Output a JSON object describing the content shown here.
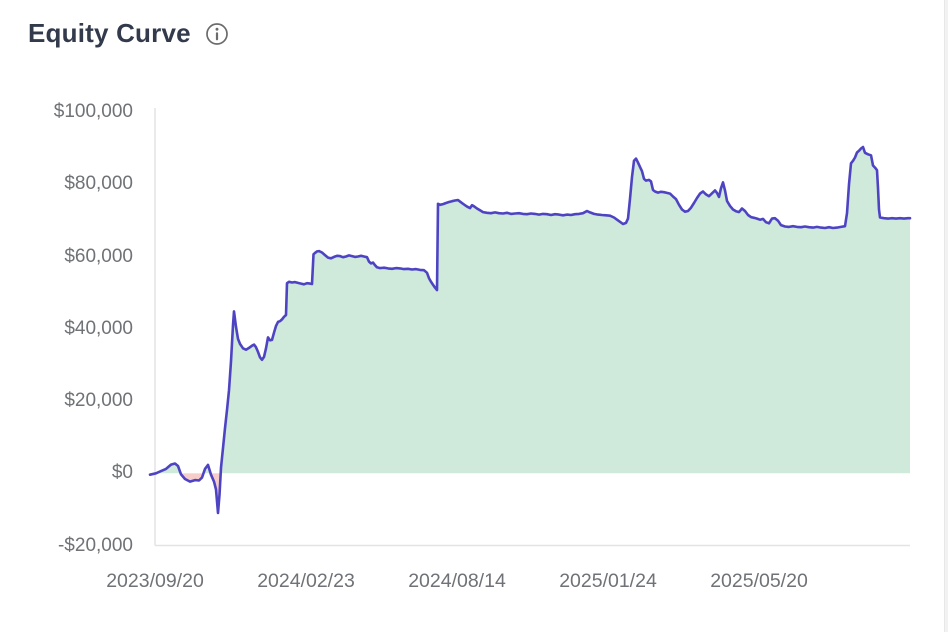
{
  "header": {
    "title": "Equity Curve"
  },
  "chart_data": {
    "type": "area",
    "title": "Equity Curve",
    "xlabel": "",
    "ylabel": "",
    "ylim": [
      -20000,
      100000
    ],
    "grid": false,
    "legend": false,
    "line_color": "#4e44c3",
    "fill_positive": "#cfe9db",
    "fill_negative": "#f7cdc9",
    "axis_color": "#e3e3e6",
    "y_ticks": [
      {
        "label": "$100,000",
        "value": 100000
      },
      {
        "label": "$80,000",
        "value": 80000
      },
      {
        "label": "$60,000",
        "value": 60000
      },
      {
        "label": "$40,000",
        "value": 40000
      },
      {
        "label": "$20,000",
        "value": 20000
      },
      {
        "label": "$0",
        "value": 0
      },
      {
        "label": "-$20,000",
        "value": -20000
      }
    ],
    "x_ticks": [
      {
        "label": "2023/09/20",
        "f": 0.0
      },
      {
        "label": "2024/02/23",
        "f": 0.2
      },
      {
        "label": "2024/08/14",
        "f": 0.4
      },
      {
        "label": "2025/01/24",
        "f": 0.6
      },
      {
        "label": "2025/05/20",
        "f": 0.8
      }
    ],
    "series": [
      {
        "name": "equity",
        "unit": "USD",
        "points": [
          [
            -0.0066,
            -400
          ],
          [
            0.0013,
            0
          ],
          [
            0.0079,
            600
          ],
          [
            0.0146,
            1200
          ],
          [
            0.0212,
            2400
          ],
          [
            0.0265,
            2700
          ],
          [
            0.0305,
            2000
          ],
          [
            0.0344,
            -300
          ],
          [
            0.0397,
            -1600
          ],
          [
            0.0464,
            -2300
          ],
          [
            0.053,
            -1900
          ],
          [
            0.0583,
            -2000
          ],
          [
            0.0623,
            -1200
          ],
          [
            0.0662,
            1200
          ],
          [
            0.0702,
            2300
          ],
          [
            0.0742,
            -400
          ],
          [
            0.0781,
            -2300
          ],
          [
            0.0808,
            -4500
          ],
          [
            0.0834,
            -11000
          ],
          [
            0.0854,
            -6000
          ],
          [
            0.0874,
            1500
          ],
          [
            0.0901,
            7000
          ],
          [
            0.0927,
            12500
          ],
          [
            0.0954,
            17500
          ],
          [
            0.098,
            23000
          ],
          [
            0.1007,
            31000
          ],
          [
            0.1033,
            41000
          ],
          [
            0.1046,
            44800
          ],
          [
            0.1073,
            40500
          ],
          [
            0.1099,
            37200
          ],
          [
            0.1126,
            35800
          ],
          [
            0.1166,
            34600
          ],
          [
            0.1205,
            34200
          ],
          [
            0.1245,
            34700
          ],
          [
            0.1285,
            35300
          ],
          [
            0.1311,
            35600
          ],
          [
            0.1338,
            34900
          ],
          [
            0.1364,
            33600
          ],
          [
            0.1391,
            32100
          ],
          [
            0.1417,
            31400
          ],
          [
            0.1444,
            32200
          ],
          [
            0.147,
            34600
          ],
          [
            0.1497,
            37600
          ],
          [
            0.1523,
            36800
          ],
          [
            0.155,
            36900
          ],
          [
            0.1576,
            38900
          ],
          [
            0.1603,
            40800
          ],
          [
            0.1629,
            41900
          ],
          [
            0.1656,
            42100
          ],
          [
            0.1682,
            42600
          ],
          [
            0.1709,
            43300
          ],
          [
            0.1735,
            43800
          ],
          [
            0.1748,
            52600
          ],
          [
            0.1775,
            53000
          ],
          [
            0.1815,
            52800
          ],
          [
            0.1854,
            52900
          ],
          [
            0.1894,
            52700
          ],
          [
            0.1934,
            52500
          ],
          [
            0.1974,
            52300
          ],
          [
            0.2013,
            52600
          ],
          [
            0.2053,
            52500
          ],
          [
            0.2079,
            52400
          ],
          [
            0.2099,
            60600
          ],
          [
            0.2119,
            61000
          ],
          [
            0.2146,
            61400
          ],
          [
            0.2172,
            61500
          ],
          [
            0.2212,
            61100
          ],
          [
            0.2252,
            60400
          ],
          [
            0.2291,
            59700
          ],
          [
            0.2331,
            59500
          ],
          [
            0.2371,
            59900
          ],
          [
            0.2411,
            60200
          ],
          [
            0.245,
            60100
          ],
          [
            0.249,
            59800
          ],
          [
            0.253,
            60000
          ],
          [
            0.257,
            60300
          ],
          [
            0.2609,
            60100
          ],
          [
            0.2649,
            59900
          ],
          [
            0.2689,
            60000
          ],
          [
            0.2728,
            60200
          ],
          [
            0.2768,
            60000
          ],
          [
            0.2808,
            59800
          ],
          [
            0.2834,
            58600
          ],
          [
            0.2861,
            58100
          ],
          [
            0.2887,
            58300
          ],
          [
            0.2914,
            57600
          ],
          [
            0.294,
            57000
          ],
          [
            0.298,
            56800
          ],
          [
            0.3033,
            56900
          ],
          [
            0.3086,
            56700
          ],
          [
            0.3139,
            56600
          ],
          [
            0.3192,
            56800
          ],
          [
            0.3245,
            56700
          ],
          [
            0.3298,
            56500
          ],
          [
            0.3351,
            56600
          ],
          [
            0.3404,
            56400
          ],
          [
            0.3457,
            56500
          ],
          [
            0.351,
            56300
          ],
          [
            0.3563,
            56200
          ],
          [
            0.3603,
            55500
          ],
          [
            0.3629,
            54000
          ],
          [
            0.3656,
            53000
          ],
          [
            0.3682,
            52200
          ],
          [
            0.3709,
            51400
          ],
          [
            0.3735,
            50700
          ],
          [
            0.3748,
            74600
          ],
          [
            0.3775,
            74300
          ],
          [
            0.3815,
            74500
          ],
          [
            0.3854,
            74800
          ],
          [
            0.3894,
            75100
          ],
          [
            0.3934,
            75300
          ],
          [
            0.3974,
            75500
          ],
          [
            0.4013,
            75600
          ],
          [
            0.4053,
            75000
          ],
          [
            0.4093,
            74400
          ],
          [
            0.4132,
            73800
          ],
          [
            0.4172,
            73400
          ],
          [
            0.4199,
            74200
          ],
          [
            0.4225,
            73900
          ],
          [
            0.4265,
            73300
          ],
          [
            0.4305,
            72800
          ],
          [
            0.4344,
            72300
          ],
          [
            0.4397,
            72100
          ],
          [
            0.445,
            72000
          ],
          [
            0.4503,
            72200
          ],
          [
            0.4556,
            72000
          ],
          [
            0.4609,
            71900
          ],
          [
            0.4662,
            72100
          ],
          [
            0.4715,
            71800
          ],
          [
            0.4768,
            71900
          ],
          [
            0.4821,
            72000
          ],
          [
            0.4874,
            71800
          ],
          [
            0.4927,
            71700
          ],
          [
            0.498,
            71900
          ],
          [
            0.5033,
            71800
          ],
          [
            0.5086,
            71600
          ],
          [
            0.5139,
            71800
          ],
          [
            0.5192,
            71700
          ],
          [
            0.5245,
            71500
          ],
          [
            0.5298,
            71700
          ],
          [
            0.5351,
            71600
          ],
          [
            0.5404,
            71400
          ],
          [
            0.5457,
            71600
          ],
          [
            0.551,
            71500
          ],
          [
            0.5563,
            71700
          ],
          [
            0.5616,
            71800
          ],
          [
            0.5669,
            72000
          ],
          [
            0.5722,
            72600
          ],
          [
            0.5762,
            72200
          ],
          [
            0.5815,
            71800
          ],
          [
            0.5868,
            71600
          ],
          [
            0.5921,
            71500
          ],
          [
            0.5974,
            71400
          ],
          [
            0.6026,
            71300
          ],
          [
            0.6079,
            70800
          ],
          [
            0.6119,
            70200
          ],
          [
            0.6159,
            69600
          ],
          [
            0.6199,
            69000
          ],
          [
            0.6238,
            69300
          ],
          [
            0.6265,
            70500
          ],
          [
            0.6291,
            76000
          ],
          [
            0.6318,
            82000
          ],
          [
            0.6344,
            86500
          ],
          [
            0.6371,
            87100
          ],
          [
            0.6397,
            86000
          ],
          [
            0.6424,
            84800
          ],
          [
            0.645,
            83600
          ],
          [
            0.6477,
            81500
          ],
          [
            0.6503,
            81000
          ],
          [
            0.6543,
            81200
          ],
          [
            0.657,
            80800
          ],
          [
            0.6596,
            78400
          ],
          [
            0.6623,
            78000
          ],
          [
            0.6662,
            77700
          ],
          [
            0.6702,
            77900
          ],
          [
            0.6742,
            77800
          ],
          [
            0.6781,
            77600
          ],
          [
            0.6821,
            77400
          ],
          [
            0.6861,
            76600
          ],
          [
            0.6901,
            75900
          ],
          [
            0.694,
            74300
          ],
          [
            0.698,
            73000
          ],
          [
            0.702,
            72400
          ],
          [
            0.706,
            72600
          ],
          [
            0.7099,
            73500
          ],
          [
            0.7139,
            74800
          ],
          [
            0.7179,
            76200
          ],
          [
            0.7219,
            77400
          ],
          [
            0.7258,
            78000
          ],
          [
            0.7298,
            77200
          ],
          [
            0.7338,
            76700
          ],
          [
            0.7377,
            77500
          ],
          [
            0.7417,
            78300
          ],
          [
            0.7444,
            77600
          ],
          [
            0.747,
            76500
          ],
          [
            0.7497,
            78900
          ],
          [
            0.7523,
            80500
          ],
          [
            0.755,
            78300
          ],
          [
            0.7576,
            75400
          ],
          [
            0.7616,
            74000
          ],
          [
            0.7656,
            73000
          ],
          [
            0.7695,
            72500
          ],
          [
            0.7735,
            72300
          ],
          [
            0.7775,
            73300
          ],
          [
            0.7815,
            72600
          ],
          [
            0.7854,
            71500
          ],
          [
            0.7894,
            70900
          ],
          [
            0.7934,
            70700
          ],
          [
            0.7974,
            70500
          ],
          [
            0.8013,
            70200
          ],
          [
            0.8053,
            70400
          ],
          [
            0.8093,
            69500
          ],
          [
            0.8132,
            69200
          ],
          [
            0.8172,
            70500
          ],
          [
            0.8212,
            70600
          ],
          [
            0.8252,
            69900
          ],
          [
            0.8291,
            68700
          ],
          [
            0.8344,
            68300
          ],
          [
            0.8397,
            68200
          ],
          [
            0.845,
            68400
          ],
          [
            0.8503,
            68200
          ],
          [
            0.8556,
            68100
          ],
          [
            0.8609,
            68300
          ],
          [
            0.8662,
            68100
          ],
          [
            0.8715,
            68000
          ],
          [
            0.8768,
            68200
          ],
          [
            0.8821,
            68000
          ],
          [
            0.8874,
            67900
          ],
          [
            0.8927,
            68100
          ],
          [
            0.898,
            67900
          ],
          [
            0.9033,
            68000
          ],
          [
            0.9086,
            68200
          ],
          [
            0.9139,
            68400
          ],
          [
            0.9166,
            72000
          ],
          [
            0.9192,
            80000
          ],
          [
            0.9219,
            85800
          ],
          [
            0.9245,
            86500
          ],
          [
            0.9272,
            87400
          ],
          [
            0.9298,
            88800
          ],
          [
            0.9325,
            89300
          ],
          [
            0.9351,
            89900
          ],
          [
            0.9377,
            90300
          ],
          [
            0.9404,
            88700
          ],
          [
            0.9444,
            88300
          ],
          [
            0.9483,
            88000
          ],
          [
            0.951,
            85200
          ],
          [
            0.9536,
            84600
          ],
          [
            0.9563,
            83900
          ],
          [
            0.9576,
            79000
          ],
          [
            0.9589,
            73000
          ],
          [
            0.9603,
            70800
          ],
          [
            0.9656,
            70600
          ],
          [
            0.9709,
            70500
          ],
          [
            0.9762,
            70600
          ],
          [
            0.9815,
            70500
          ],
          [
            0.9868,
            70600
          ],
          [
            0.9921,
            70500
          ],
          [
            0.9974,
            70600
          ],
          [
            1.0,
            70600
          ]
        ]
      }
    ]
  }
}
